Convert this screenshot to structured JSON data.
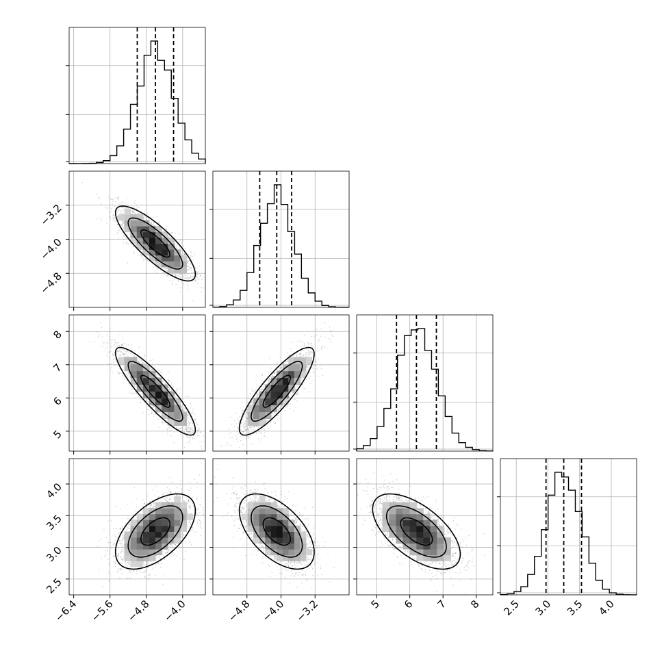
{
  "chart_data": {
    "type": "corner",
    "description_parameters": 4,
    "grid": true,
    "quantiles": [
      0.16,
      0.5,
      0.84
    ],
    "contour_levels": 3,
    "colors": {
      "line": "#000000",
      "grid": "#b0b0b0",
      "points": "#808080"
    },
    "parameters": [
      {
        "index": 0,
        "mean": -4.6,
        "std": 0.4,
        "range": [
          -6.5,
          -3.5
        ],
        "ticks": [
          -6.4,
          -5.6,
          -4.8,
          -4.0
        ],
        "tick_labels": [
          "−6.4",
          "−5.6",
          "−4.8",
          "−4.0"
        ],
        "quantile_values": [
          -5.0,
          -4.6,
          -4.2
        ]
      },
      {
        "index": 1,
        "mean": -4.1,
        "std": 0.4,
        "range": [
          -5.6,
          -2.4
        ],
        "ticks": [
          -4.8,
          -4.0,
          -3.2
        ],
        "tick_labels": [
          "−4.8",
          "−4.0",
          "−3.2"
        ],
        "quantile_values": [
          -4.5,
          -4.1,
          -3.75
        ]
      },
      {
        "index": 2,
        "mean": 6.2,
        "std": 0.6,
        "range": [
          4.4,
          8.5
        ],
        "ticks": [
          5,
          6,
          7,
          8
        ],
        "tick_labels": [
          "5",
          "6",
          "7",
          "8"
        ],
        "quantile_values": [
          5.6,
          6.2,
          6.8
        ]
      },
      {
        "index": 3,
        "mean": 3.25,
        "std": 0.27,
        "range": [
          2.25,
          4.4
        ],
        "ticks": [
          2.5,
          3.0,
          3.5,
          4.0
        ],
        "tick_labels": [
          "2.5",
          "3.0",
          "3.5",
          "4.0"
        ],
        "quantile_values": [
          2.97,
          3.25,
          3.53
        ]
      }
    ],
    "correlations": [
      {
        "pair": [
          1,
          0
        ],
        "rho": -0.82
      },
      {
        "pair": [
          2,
          0
        ],
        "rho": -0.88
      },
      {
        "pair": [
          2,
          1
        ],
        "rho": 0.85
      },
      {
        "pair": [
          3,
          0
        ],
        "rho": 0.55
      },
      {
        "pair": [
          3,
          1
        ],
        "rho": -0.55
      },
      {
        "pair": [
          3,
          2
        ],
        "rho": -0.6
      }
    ]
  }
}
